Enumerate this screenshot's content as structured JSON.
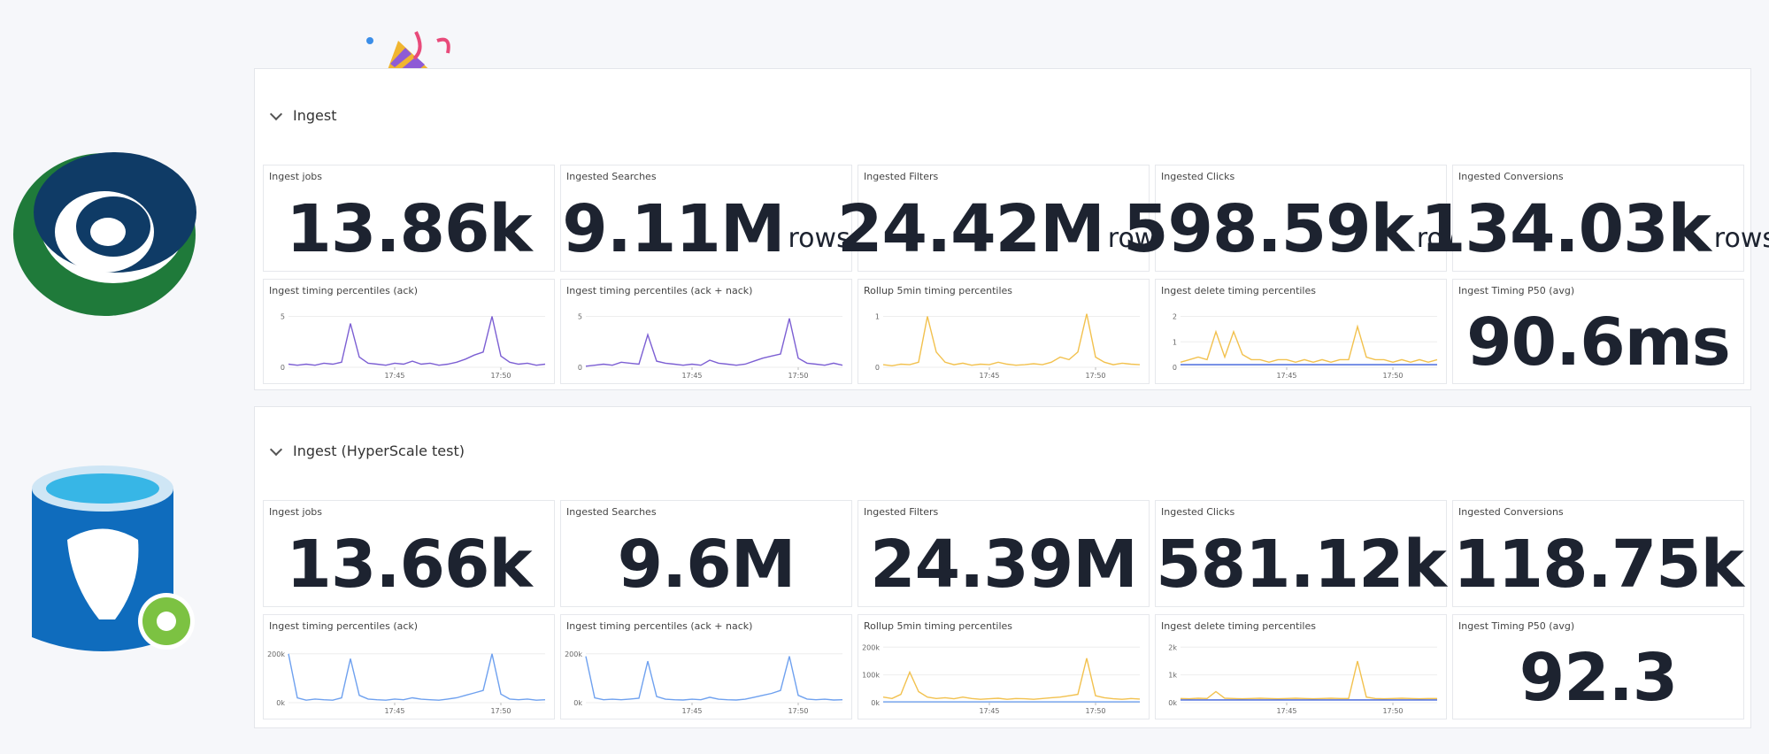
{
  "groups": [
    {
      "title": "Ingest",
      "stats": [
        {
          "label": "Ingest jobs",
          "value": "13.86k"
        },
        {
          "label": "Ingested Searches",
          "value": "9.11M",
          "unit": "rows"
        },
        {
          "label": "Ingested Filters",
          "value": "24.42M",
          "unit": "rows"
        },
        {
          "label": "Ingested Clicks",
          "value": "598.59k",
          "unit": "rows"
        },
        {
          "label": "Ingested Conversions",
          "value": "134.03k",
          "unit": "rows"
        }
      ],
      "charts": [
        {
          "type": "line",
          "title": "Ingest timing percentiles (ack)",
          "ylim": [
            0,
            6
          ],
          "yticks": [
            0,
            5
          ],
          "xticks": [
            {
              "value": 12,
              "label": "17:45"
            },
            {
              "value": 24,
              "label": "17:50"
            }
          ],
          "series": [
            {
              "color": "#7c5fd3",
              "values": [
                0.3,
                0.2,
                0.3,
                0.2,
                0.4,
                0.3,
                0.5,
                4.3,
                1.0,
                0.4,
                0.3,
                0.2,
                0.4,
                0.3,
                0.6,
                0.3,
                0.4,
                0.2,
                0.3,
                0.5,
                0.8,
                1.2,
                1.5,
                5.0,
                1.1,
                0.5,
                0.3,
                0.4,
                0.2,
                0.3
              ]
            }
          ]
        },
        {
          "type": "line",
          "title": "Ingest timing percentiles (ack + nack)",
          "ylim": [
            0,
            6
          ],
          "yticks": [
            0,
            5
          ],
          "xticks": [
            {
              "value": 12,
              "label": "17:45"
            },
            {
              "value": 24,
              "label": "17:50"
            }
          ],
          "series": [
            {
              "color": "#7c5fd3",
              "values": [
                0.1,
                0.2,
                0.3,
                0.2,
                0.5,
                0.4,
                0.3,
                3.2,
                0.6,
                0.4,
                0.3,
                0.2,
                0.3,
                0.2,
                0.7,
                0.4,
                0.3,
                0.2,
                0.3,
                0.6,
                0.9,
                1.1,
                1.3,
                4.8,
                0.9,
                0.4,
                0.3,
                0.2,
                0.4,
                0.2
              ]
            }
          ]
        },
        {
          "type": "line",
          "title": "Rollup 5min timing percentiles",
          "ylim": [
            0,
            1.2
          ],
          "yticks": [
            0,
            1
          ],
          "xticks": [
            {
              "value": 12,
              "label": "17:45"
            },
            {
              "value": 24,
              "label": "17:50"
            }
          ],
          "series": [
            {
              "color": "#f2c14e",
              "values": [
                0.05,
                0.03,
                0.06,
                0.05,
                0.1,
                1.0,
                0.3,
                0.1,
                0.05,
                0.08,
                0.04,
                0.06,
                0.05,
                0.1,
                0.06,
                0.04,
                0.05,
                0.07,
                0.05,
                0.1,
                0.2,
                0.15,
                0.3,
                1.05,
                0.2,
                0.1,
                0.05,
                0.08,
                0.06,
                0.05
              ]
            }
          ]
        },
        {
          "type": "line",
          "title": "Ingest delete timing percentiles",
          "ylim": [
            0,
            2.4
          ],
          "yticks": [
            0,
            1,
            2
          ],
          "xticks": [
            {
              "value": 12,
              "label": "17:45"
            },
            {
              "value": 24,
              "label": "17:50"
            }
          ],
          "series": [
            {
              "color": "#f2c14e",
              "values": [
                0.2,
                0.3,
                0.4,
                0.3,
                1.4,
                0.4,
                1.4,
                0.5,
                0.3,
                0.3,
                0.2,
                0.3,
                0.3,
                0.2,
                0.3,
                0.2,
                0.3,
                0.2,
                0.3,
                0.3,
                1.6,
                0.4,
                0.3,
                0.3,
                0.2,
                0.3,
                0.2,
                0.3,
                0.2,
                0.3
              ]
            },
            {
              "color": "#3b5fd9",
              "values": [
                0.1,
                0.1,
                0.1,
                0.1,
                0.1,
                0.1,
                0.1,
                0.1,
                0.1,
                0.1,
                0.1,
                0.1,
                0.1,
                0.1,
                0.1,
                0.1,
                0.1,
                0.1,
                0.1,
                0.1,
                0.1,
                0.1,
                0.1,
                0.1,
                0.1,
                0.1,
                0.1,
                0.1,
                0.1,
                0.1
              ]
            }
          ]
        }
      ],
      "timing": {
        "label": "Ingest Timing P50 (avg)",
        "value": "90.6ms"
      }
    },
    {
      "title": "Ingest (HyperScale test)",
      "stats": [
        {
          "label": "Ingest jobs",
          "value": "13.66k"
        },
        {
          "label": "Ingested Searches",
          "value": "9.6M"
        },
        {
          "label": "Ingested Filters",
          "value": "24.39M"
        },
        {
          "label": "Ingested Clicks",
          "value": "581.12k"
        },
        {
          "label": "Ingested Conversions",
          "value": "118.75k"
        }
      ],
      "charts": [
        {
          "type": "line",
          "title": "Ingest timing percentiles (ack)",
          "ylim": [
            0,
            250000
          ],
          "yticks": [
            {
              "value": 0,
              "label": "0k"
            },
            {
              "value": 200000,
              "label": "200k"
            }
          ],
          "xticks": [
            {
              "value": 12,
              "label": "17:45"
            },
            {
              "value": 24,
              "label": "17:50"
            }
          ],
          "series": [
            {
              "color": "#6fa1ef",
              "values": [
                200000,
                20000,
                10000,
                15000,
                12000,
                10000,
                20000,
                180000,
                30000,
                15000,
                12000,
                10000,
                15000,
                12000,
                20000,
                14000,
                12000,
                10000,
                15000,
                20000,
                30000,
                40000,
                50000,
                200000,
                35000,
                15000,
                12000,
                15000,
                10000,
                12000
              ]
            }
          ]
        },
        {
          "type": "line",
          "title": "Ingest timing percentiles (ack + nack)",
          "ylim": [
            0,
            250000
          ],
          "yticks": [
            {
              "value": 0,
              "label": "0k"
            },
            {
              "value": 200000,
              "label": "200k"
            }
          ],
          "xticks": [
            {
              "value": 12,
              "label": "17:45"
            },
            {
              "value": 24,
              "label": "17:50"
            }
          ],
          "series": [
            {
              "color": "#6fa1ef",
              "values": [
                190000,
                20000,
                12000,
                14000,
                12000,
                15000,
                18000,
                170000,
                25000,
                14000,
                12000,
                11000,
                14000,
                12000,
                22000,
                14000,
                12000,
                11000,
                14000,
                22000,
                30000,
                38000,
                50000,
                190000,
                30000,
                15000,
                12000,
                14000,
                11000,
                12000
              ]
            }
          ]
        },
        {
          "type": "line",
          "title": "Rollup 5min timing percentiles",
          "ylim": [
            0,
            220000
          ],
          "yticks": [
            {
              "value": 0,
              "label": "0k"
            },
            {
              "value": 100000,
              "label": "100k"
            },
            {
              "value": 200000,
              "label": "200k"
            }
          ],
          "xticks": [
            {
              "value": 12,
              "label": "17:45"
            },
            {
              "value": 24,
              "label": "17:50"
            }
          ],
          "series": [
            {
              "color": "#f2c14e",
              "values": [
                20000,
                15000,
                30000,
                110000,
                40000,
                20000,
                15000,
                18000,
                14000,
                20000,
                15000,
                12000,
                14000,
                16000,
                12000,
                15000,
                14000,
                12000,
                15000,
                18000,
                20000,
                25000,
                30000,
                160000,
                25000,
                18000,
                14000,
                12000,
                15000,
                13000
              ]
            },
            {
              "color": "#6fa1ef",
              "values": [
                3000,
                3000,
                3000,
                3000,
                3000,
                3000,
                3000,
                3000,
                3000,
                3000,
                3000,
                3000,
                3000,
                3000,
                3000,
                3000,
                3000,
                3000,
                3000,
                3000,
                3000,
                3000,
                3000,
                3000,
                3000,
                3000,
                3000,
                3000,
                3000,
                3000
              ]
            }
          ]
        },
        {
          "type": "line",
          "title": "Ingest delete timing percentiles",
          "ylim": [
            0,
            2200
          ],
          "yticks": [
            {
              "value": 0,
              "label": "0k"
            },
            {
              "value": 1000,
              "label": "1k"
            },
            {
              "value": 2000,
              "label": "2k"
            }
          ],
          "xticks": [
            {
              "value": 12,
              "label": "17:45"
            },
            {
              "value": 24,
              "label": "17:50"
            }
          ],
          "series": [
            {
              "color": "#f2c14e",
              "values": [
                150,
                140,
                160,
                150,
                400,
                160,
                150,
                140,
                150,
                160,
                150,
                140,
                150,
                160,
                150,
                140,
                150,
                160,
                150,
                150,
                1500,
                200,
                150,
                140,
                150,
                160,
                150,
                140,
                150,
                150
              ]
            },
            {
              "color": "#3b5fd9",
              "values": [
                100,
                100,
                100,
                100,
                100,
                100,
                100,
                100,
                100,
                100,
                100,
                100,
                100,
                100,
                100,
                100,
                100,
                100,
                100,
                100,
                100,
                100,
                100,
                100,
                100,
                100,
                100,
                100,
                100,
                100
              ]
            }
          ]
        }
      ],
      "timing": {
        "label": "Ingest Timing P50 (avg)",
        "value": "92.3"
      }
    }
  ]
}
